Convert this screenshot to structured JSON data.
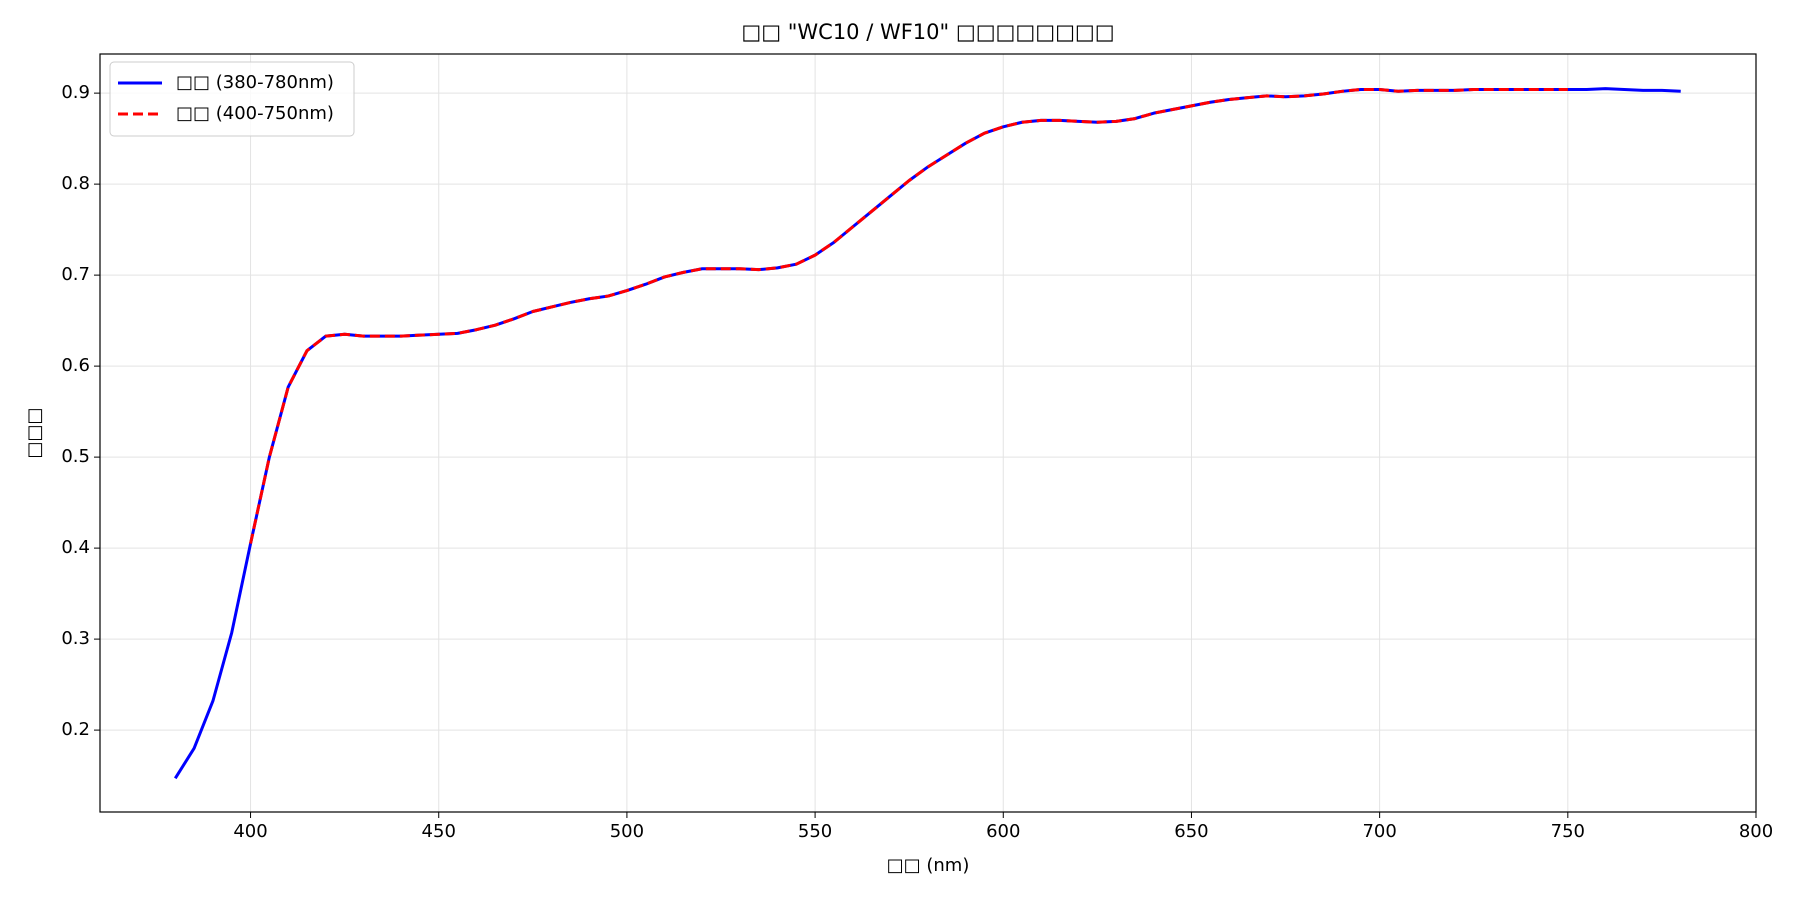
{
  "chart_data": {
    "type": "line",
    "title": "□□ \"WC10 / WF10\" □□□□□□□□",
    "x_label": "□□ (nm)",
    "y_label": "□□□",
    "xlim": [
      360,
      800
    ],
    "xticks": [
      400,
      450,
      500,
      550,
      600,
      650,
      700,
      750,
      800
    ],
    "ylim": [
      0.11,
      0.943
    ],
    "yticks": [
      0.2,
      0.3,
      0.4,
      0.5,
      0.6,
      0.7,
      0.8,
      0.9
    ],
    "grid": true,
    "legend": "upper left",
    "series": [
      {
        "name": "□□ (380-780nm)",
        "color": "#0000ff",
        "linestyle": "solid",
        "x": [
          380,
          385,
          390,
          395,
          400,
          405,
          410,
          415,
          420,
          425,
          430,
          435,
          440,
          445,
          450,
          455,
          460,
          465,
          470,
          475,
          480,
          485,
          490,
          495,
          500,
          505,
          510,
          515,
          520,
          525,
          530,
          535,
          540,
          545,
          550,
          555,
          560,
          565,
          570,
          575,
          580,
          585,
          590,
          595,
          600,
          605,
          610,
          615,
          620,
          625,
          630,
          635,
          640,
          645,
          650,
          655,
          660,
          665,
          670,
          675,
          680,
          685,
          690,
          695,
          700,
          705,
          710,
          715,
          720,
          725,
          730,
          735,
          740,
          745,
          750,
          755,
          760,
          765,
          770,
          775,
          780
        ],
        "values": [
          0.147,
          0.18,
          0.232,
          0.307,
          0.405,
          0.5,
          0.577,
          0.617,
          0.633,
          0.635,
          0.633,
          0.633,
          0.633,
          0.634,
          0.635,
          0.636,
          0.64,
          0.645,
          0.652,
          0.66,
          0.665,
          0.67,
          0.674,
          0.677,
          0.683,
          0.69,
          0.698,
          0.703,
          0.707,
          0.707,
          0.707,
          0.706,
          0.708,
          0.712,
          0.722,
          0.736,
          0.753,
          0.77,
          0.787,
          0.804,
          0.819,
          0.832,
          0.845,
          0.856,
          0.863,
          0.868,
          0.87,
          0.87,
          0.869,
          0.868,
          0.869,
          0.872,
          0.878,
          0.882,
          0.886,
          0.89,
          0.893,
          0.895,
          0.897,
          0.896,
          0.897,
          0.899,
          0.902,
          0.904,
          0.904,
          0.902,
          0.903,
          0.903,
          0.903,
          0.904,
          0.904,
          0.904,
          0.904,
          0.904,
          0.904,
          0.904,
          0.905,
          0.904,
          0.903,
          0.903,
          0.902
        ]
      },
      {
        "name": "□□ (400-750nm)",
        "color": "#ff0000",
        "linestyle": "dashed",
        "x": [
          400,
          405,
          410,
          415,
          420,
          425,
          430,
          435,
          440,
          445,
          450,
          455,
          460,
          465,
          470,
          475,
          480,
          485,
          490,
          495,
          500,
          505,
          510,
          515,
          520,
          525,
          530,
          535,
          540,
          545,
          550,
          555,
          560,
          565,
          570,
          575,
          580,
          585,
          590,
          595,
          600,
          605,
          610,
          615,
          620,
          625,
          630,
          635,
          640,
          645,
          650,
          655,
          660,
          665,
          670,
          675,
          680,
          685,
          690,
          695,
          700,
          705,
          710,
          715,
          720,
          725,
          730,
          735,
          740,
          745,
          750
        ],
        "values": [
          0.405,
          0.5,
          0.577,
          0.617,
          0.633,
          0.635,
          0.633,
          0.633,
          0.633,
          0.634,
          0.635,
          0.636,
          0.64,
          0.645,
          0.652,
          0.66,
          0.665,
          0.67,
          0.674,
          0.677,
          0.683,
          0.69,
          0.698,
          0.703,
          0.707,
          0.707,
          0.707,
          0.706,
          0.708,
          0.712,
          0.722,
          0.736,
          0.753,
          0.77,
          0.787,
          0.804,
          0.819,
          0.832,
          0.845,
          0.856,
          0.863,
          0.868,
          0.87,
          0.87,
          0.869,
          0.868,
          0.869,
          0.872,
          0.878,
          0.882,
          0.886,
          0.89,
          0.893,
          0.895,
          0.897,
          0.896,
          0.897,
          0.899,
          0.902,
          0.904,
          0.904,
          0.902,
          0.903,
          0.903,
          0.903,
          0.904,
          0.904,
          0.904,
          0.904,
          0.904,
          0.904
        ]
      }
    ]
  }
}
